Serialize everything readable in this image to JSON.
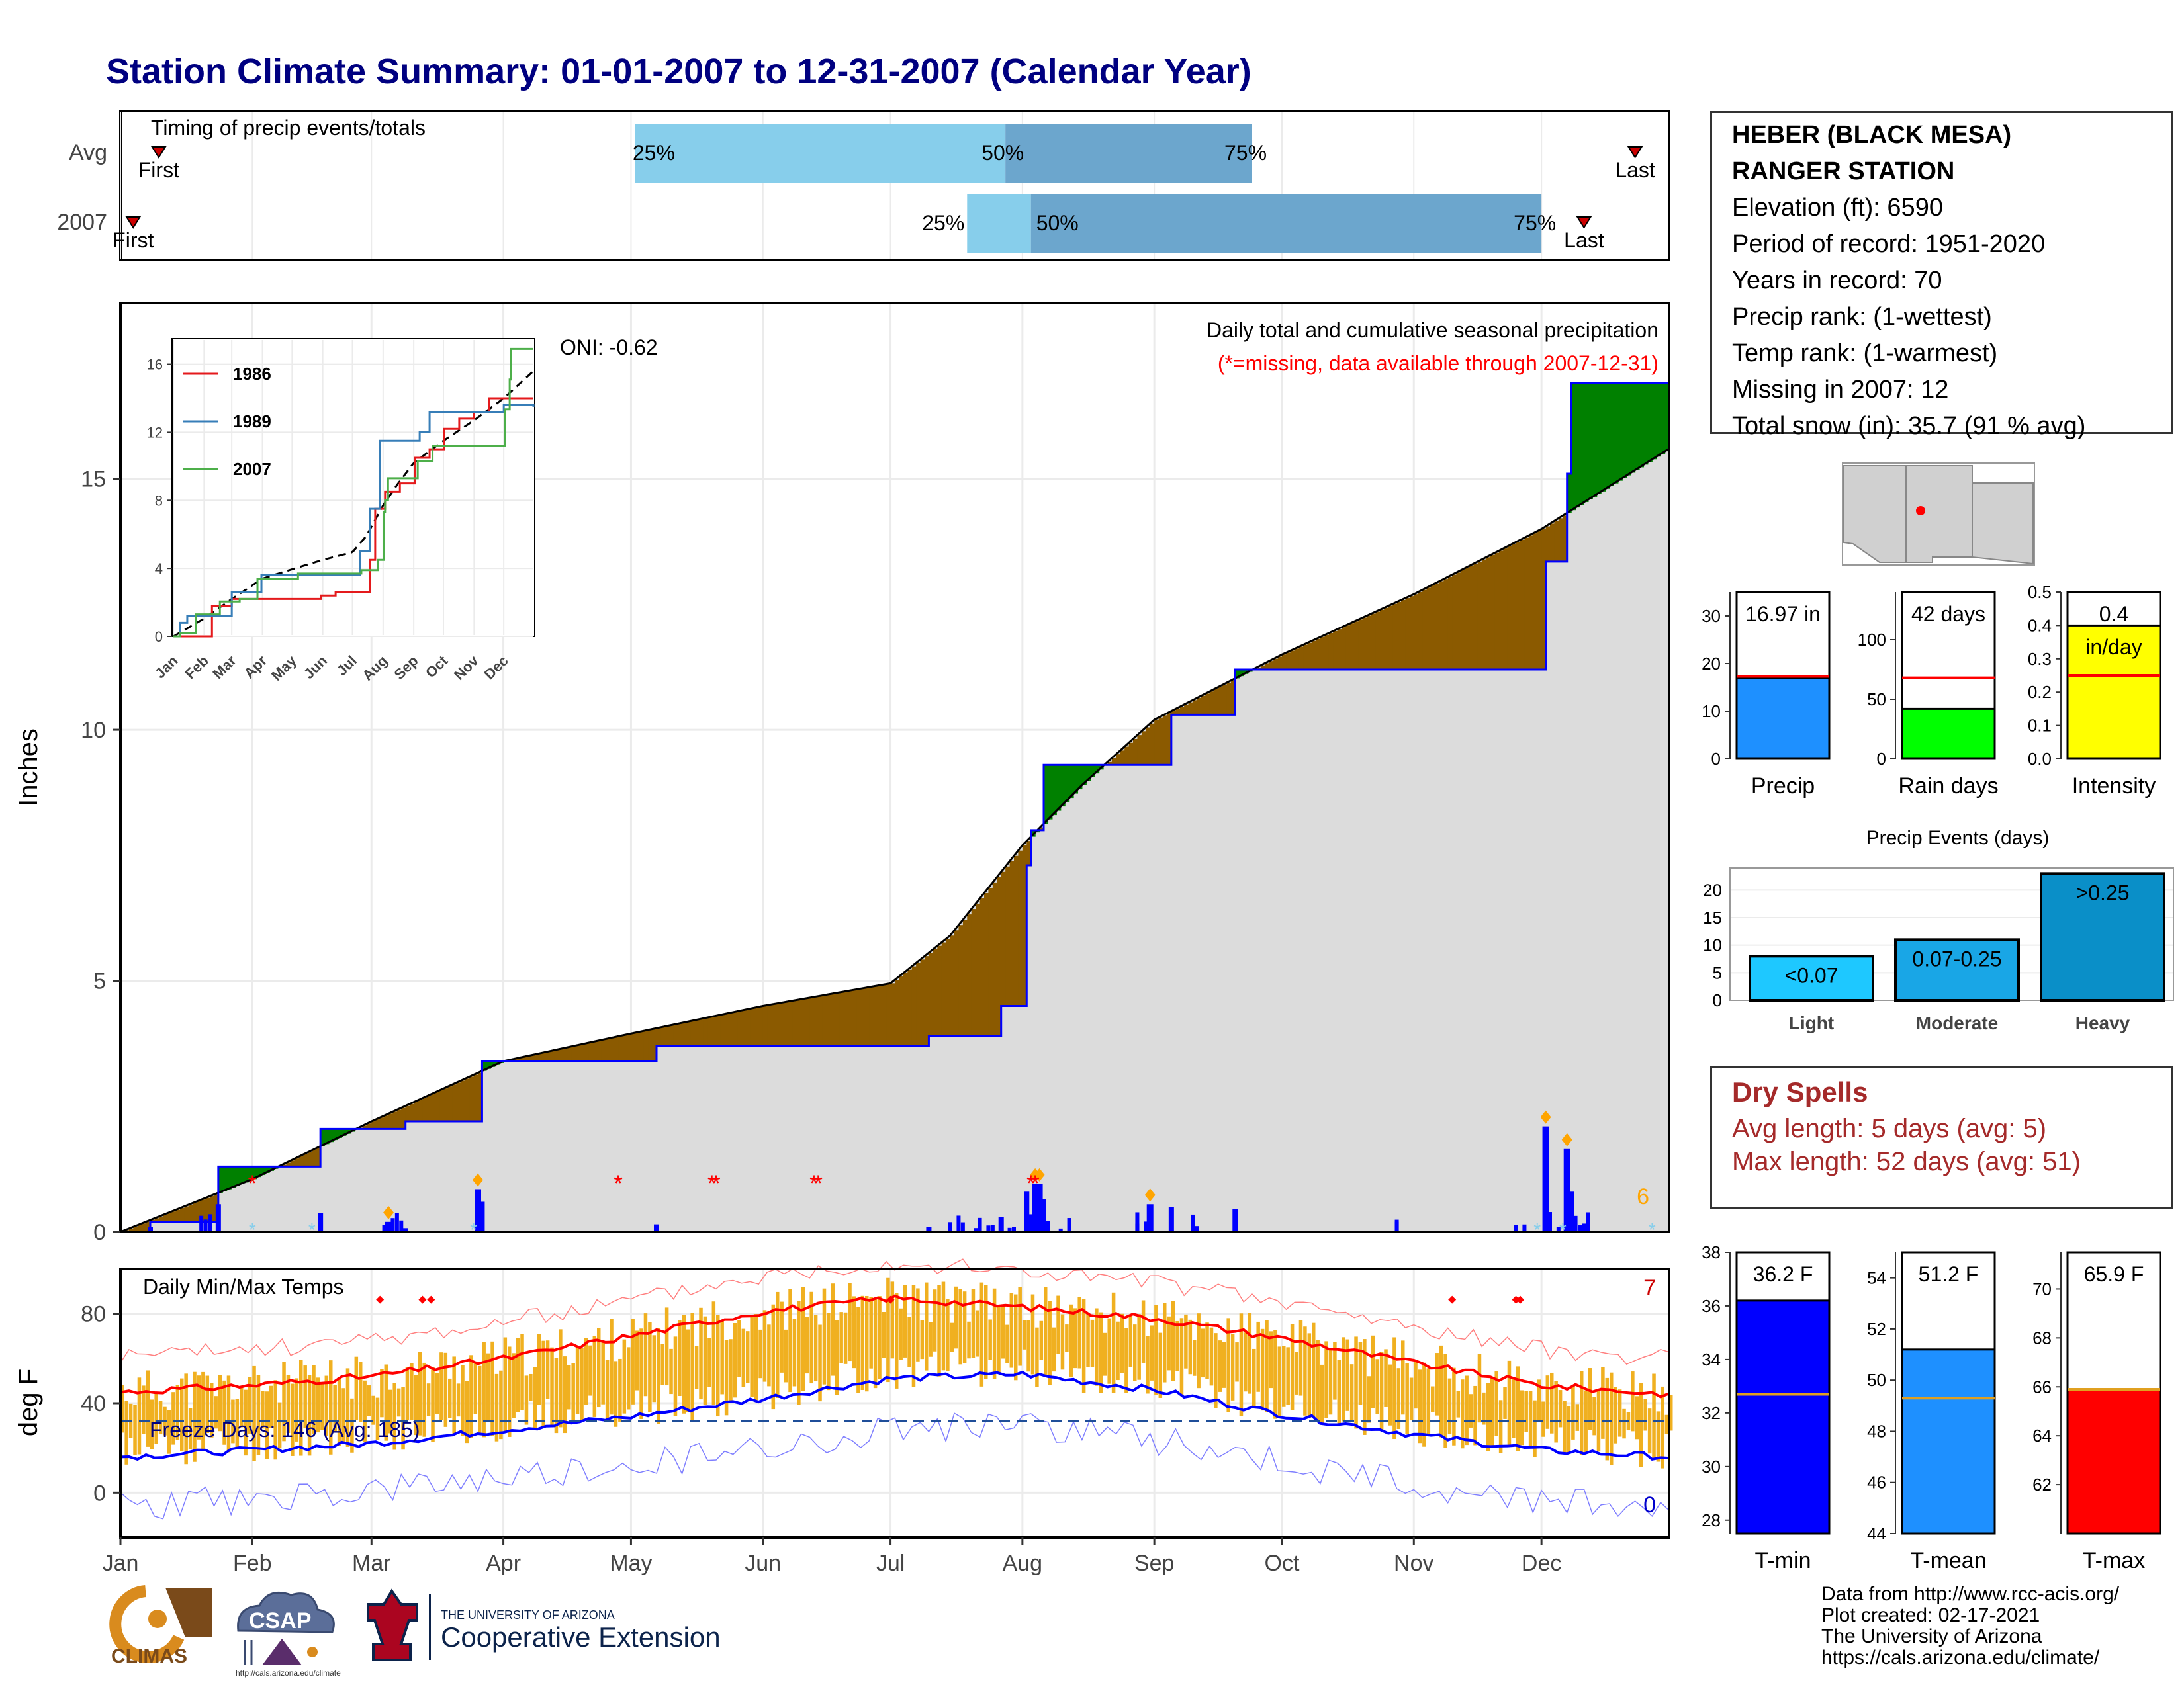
{
  "page_title": "Station Climate Summary: 01-01-2007 to 12-31-2007 (Calendar Year)",
  "colors": {
    "title": "#000080",
    "cum_gray": "#dcdcdc",
    "surplus_green": "#008000",
    "deficit_brown": "#8b5a00",
    "current_line": "#0000ff",
    "avg_line": "#000000",
    "tmax_avg": "#ff0000",
    "tmin_avg": "#0000ff",
    "temp_bars": "#f0b020",
    "missing": "#ff0000",
    "event_marker": "#ffa500",
    "snow_marker": "#87ceeb"
  },
  "station": {
    "name_line1": "HEBER (BLACK MESA)",
    "name_line2": "RANGER STATION",
    "elevation": "Elevation (ft): 6590",
    "period": "Period of record: 1951-2020",
    "years": "Years in record: 70",
    "precip_rank": "Precip rank:  (1-wettest)",
    "temp_rank": "Temp rank:  (1-warmest)",
    "missing": "Missing in 2007: 12",
    "snow": "Total snow (in): 35.7 (91 % avg)"
  },
  "timing": {
    "title": "Timing of precip events/totals",
    "rows": [
      {
        "label": "Avg",
        "first_label": "First",
        "last_label": "Last",
        "first_day": 10,
        "last_day": 357,
        "p25": 122,
        "p50": 209,
        "p75": 267,
        "p25_label": "25%",
        "p50_label": "50%",
        "p75_label": "75%"
      },
      {
        "label": "2007",
        "first_label": "First",
        "last_label": "Last",
        "first_day": 4,
        "last_day": 345,
        "p25": 200,
        "p50": 215,
        "p75": 335,
        "p25_label": "25%",
        "p50_label": "50%",
        "p75_label": "75%"
      }
    ]
  },
  "precip_panel": {
    "ylabel": "Inches",
    "title": "Daily total and cumulative seasonal precipitation",
    "subtitle": "(*=missing, data available through 2007-12-31)",
    "oni": "ONI: -0.62",
    "count_label": "6",
    "yticks": [
      "0",
      "5",
      "10",
      "15"
    ]
  },
  "inset": {
    "yticks": [
      "0",
      "4",
      "8",
      "12",
      "16"
    ],
    "months": [
      "Jan",
      "Feb",
      "Mar",
      "Apr",
      "May",
      "Jun",
      "Jul",
      "Aug",
      "Sep",
      "Oct",
      "Nov",
      "Dec"
    ],
    "legend": [
      {
        "name": "1986",
        "color": "#e41a1c"
      },
      {
        "name": "1989",
        "color": "#377eb8"
      },
      {
        "name": "2007",
        "color": "#4daf4a"
      }
    ]
  },
  "temp_panel": {
    "title": "Daily Min/Max Temps",
    "ylabel": "deg F",
    "yticks": [
      "0",
      "40",
      "80"
    ],
    "freeze_label": "Freeze Days: 146 (Avg: 185)",
    "max_count_label": "7",
    "min_count_label": "0"
  },
  "months": [
    "Jan",
    "Feb",
    "Mar",
    "Apr",
    "May",
    "Jun",
    "Jul",
    "Aug",
    "Sep",
    "Oct",
    "Nov",
    "Dec"
  ],
  "chart_data": [
    {
      "type": "bar",
      "title": "Timing of precip events/totals",
      "categories": [
        "Avg",
        "2007"
      ],
      "series": [
        {
          "name": "25%",
          "values": [
            122,
            200
          ]
        },
        {
          "name": "50%",
          "values": [
            209,
            215
          ]
        },
        {
          "name": "75%",
          "values": [
            267,
            335
          ]
        }
      ],
      "xlim": [
        1,
        365
      ]
    },
    {
      "type": "area",
      "title": "Daily total and cumulative seasonal precipitation",
      "ylabel": "Inches",
      "ylim": [
        0,
        18.5
      ],
      "series": [
        {
          "name": "average",
          "x": [
            1,
            32,
            60,
            91,
            121,
            152,
            182,
            196,
            213,
            227,
            244,
            274,
            305,
            335,
            365
          ],
          "values": [
            0,
            1.05,
            2.2,
            3.4,
            3.95,
            4.5,
            4.95,
            5.9,
            7.7,
            8.9,
            10.2,
            11.5,
            12.7,
            14.0,
            15.6
          ]
        },
        {
          "name": "2007",
          "x": [
            1,
            8,
            22,
            24,
            45,
            48,
            64,
            68,
            83,
            86,
            122,
            127,
            184,
            191,
            208,
            214,
            215,
            218,
            227,
            248,
            258,
            263,
            299,
            334,
            336,
            340,
            341,
            342,
            365
          ],
          "values": [
            0,
            0.2,
            0.2,
            1.3,
            1.3,
            2.05,
            2.05,
            2.2,
            2.2,
            3.4,
            3.4,
            3.7,
            3.7,
            3.9,
            4.5,
            7.3,
            8.0,
            9.3,
            9.3,
            10.3,
            10.3,
            11.2,
            11.2,
            11.2,
            13.35,
            13.35,
            15.1,
            16.9,
            16.9
          ]
        }
      ],
      "daily_events": {
        "x": [
          64,
          85,
          216,
          217,
          243,
          336,
          341
        ],
        "values": [
          0.2,
          0.85,
          0.95,
          0.95,
          0.55,
          2.1,
          1.65
        ]
      },
      "missing_days": [
        32,
        118,
        118,
        140,
        141,
        164,
        165,
        215,
        216
      ]
    },
    {
      "type": "bar",
      "title": "Precip",
      "categories": [
        "2007"
      ],
      "values": [
        16.97
      ],
      "avg": 17.3,
      "ylim": [
        0,
        35
      ],
      "label": "16.97 in",
      "xlabel": "Precip"
    },
    {
      "type": "bar",
      "title": "Rain days",
      "categories": [
        "2007"
      ],
      "values": [
        42
      ],
      "avg": 68,
      "ylim": [
        0,
        140
      ],
      "label": "42 days",
      "xlabel": "Rain days"
    },
    {
      "type": "bar",
      "title": "Intensity",
      "categories": [
        "2007"
      ],
      "values": [
        0.4
      ],
      "avg": 0.25,
      "ylim": [
        0,
        0.5
      ],
      "label": "0.4",
      "unit_label": "in/day",
      "xlabel": "Intensity"
    },
    {
      "type": "bar",
      "title": "Precip Events (days)",
      "categories": [
        "Light",
        "Moderate",
        "Heavy"
      ],
      "values": [
        8,
        11,
        23
      ],
      "bar_labels": [
        "<0.07",
        "0.07-0.25",
        ">0.25"
      ],
      "ylim": [
        0,
        24
      ]
    },
    {
      "type": "bar",
      "title": "T-min",
      "categories": [
        "2007"
      ],
      "values": [
        36.2
      ],
      "avg": 32.7,
      "ylim": [
        27.5,
        38
      ],
      "label": "36.2 F",
      "xlabel": "T-min"
    },
    {
      "type": "bar",
      "title": "T-mean",
      "categories": [
        "2007"
      ],
      "values": [
        51.2
      ],
      "avg": 49.3,
      "ylim": [
        44,
        55
      ],
      "label": "51.2 F",
      "xlabel": "T-mean"
    },
    {
      "type": "bar",
      "title": "T-max",
      "categories": [
        "2007"
      ],
      "values": [
        65.9
      ],
      "avg": 65.9,
      "ylim": [
        60,
        71.5
      ],
      "label": "65.9 F",
      "xlabel": "T-max"
    },
    {
      "type": "line",
      "title": "Daily Min/Max Temps",
      "ylabel": "deg F",
      "ylim": [
        -20,
        100
      ],
      "series": [
        {
          "name": "Avg max",
          "x": [
            1,
            32,
            60,
            91,
            121,
            152,
            182,
            213,
            244,
            274,
            305,
            335,
            365
          ],
          "values": [
            45,
            48,
            52,
            60,
            70,
            81,
            87,
            83,
            78,
            69,
            58,
            48,
            44
          ]
        },
        {
          "name": "Avg min",
          "x": [
            1,
            32,
            60,
            91,
            121,
            152,
            182,
            213,
            244,
            274,
            305,
            335,
            365
          ],
          "values": [
            16,
            19,
            22,
            28,
            34,
            42,
            51,
            53,
            46,
            35,
            26,
            19,
            16
          ]
        }
      ],
      "freeze_threshold": 32
    }
  ],
  "footer": {
    "line1": "Data from http://www.rcc-acis.org/",
    "line2": "Plot created: 02-17-2021",
    "line3": "The University of Arizona",
    "line4": "https://cals.arizona.edu/climate/"
  },
  "logos": {
    "climas": "CLIMAS",
    "csap": "CSAP",
    "csap_url": "http://cals.arizona.edu/climate",
    "ua_small": "THE UNIVERSITY OF ARIZONA",
    "ua_big": "Cooperative Extension"
  }
}
